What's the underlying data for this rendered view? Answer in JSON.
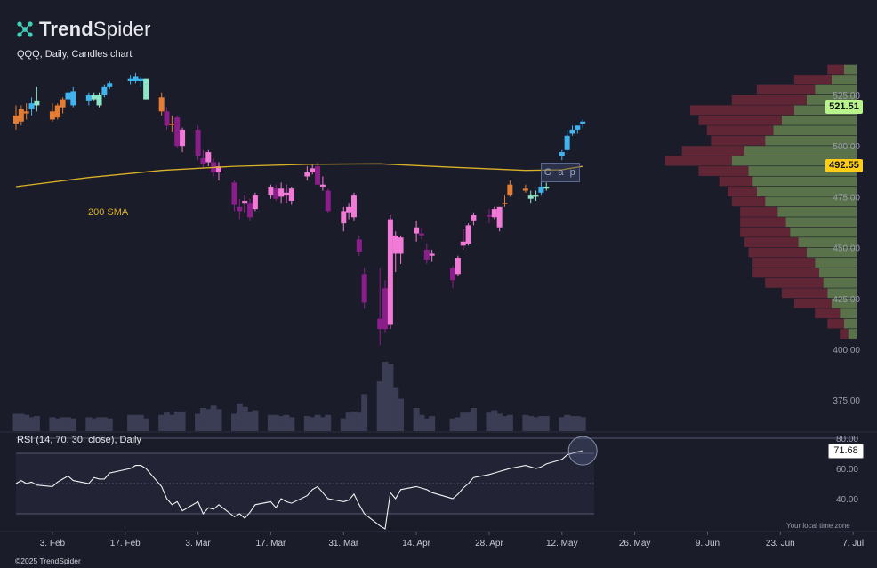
{
  "brand": {
    "logo_bold": "Trend",
    "logo_light": "Spider",
    "icon": "spider-web-icon"
  },
  "chart_title": "QQQ, Daily, Candles chart",
  "copyright": "©2025 TrendSpider",
  "local_time_note": "Your local time zone",
  "colors": {
    "background": "#1b1c29",
    "sma": "#d9b126",
    "bull_strong": "#40b4ef",
    "bull": "#f07ad6",
    "bear": "#8a1f8a",
    "bear_orange": "#e57c33",
    "mint": "#8fe6c6",
    "vp_up": "#6f8f55",
    "vp_down": "#7a2a3a",
    "volume": "#3b3d55",
    "rsi_line": "#f2f2f2"
  },
  "chart_data": {
    "type": "candlestick",
    "symbol": "QQQ",
    "interval": "Daily",
    "y_axis": {
      "ticks": [
        400,
        425,
        450,
        475,
        500,
        525
      ],
      "tick_labels": [
        "400.00",
        "425.00",
        "450.00",
        "475.00",
        "500.00",
        "525.00"
      ],
      "extra_ticks": [
        375
      ],
      "extra_tick_labels": [
        "375.00"
      ],
      "range": [
        360,
        545
      ]
    },
    "x_axis": {
      "labels": [
        "3. Feb",
        "17. Feb",
        "3. Mar",
        "17. Mar",
        "31. Mar",
        "14. Apr",
        "28. Apr",
        "12. May",
        "26. May",
        "9. Jun",
        "23. Jun",
        "7. Jul"
      ],
      "start_date": "2025-01-27",
      "end_date": "2025-07-08"
    },
    "candles": [
      {
        "d": "2025-01-27",
        "o": 515,
        "h": 520,
        "l": 508,
        "c": 511,
        "k": "bear_orange"
      },
      {
        "d": "2025-01-28",
        "o": 512,
        "h": 520,
        "l": 510,
        "c": 518,
        "k": "bear_orange"
      },
      {
        "d": "2025-01-29",
        "o": 517,
        "h": 521,
        "l": 513,
        "c": 516,
        "k": "bear_orange"
      },
      {
        "d": "2025-01-30",
        "o": 518,
        "h": 524,
        "l": 515,
        "c": 521,
        "k": "bull_strong"
      },
      {
        "d": "2025-01-31",
        "o": 522,
        "h": 529,
        "l": 517,
        "c": 520,
        "k": "mint"
      },
      {
        "d": "2025-02-03",
        "o": 517,
        "h": 521,
        "l": 512,
        "c": 513,
        "k": "bear_orange"
      },
      {
        "d": "2025-02-04",
        "o": 514,
        "h": 521,
        "l": 513,
        "c": 520,
        "k": "bear_orange"
      },
      {
        "d": "2025-02-05",
        "o": 519,
        "h": 524,
        "l": 516,
        "c": 523,
        "k": "bear_orange"
      },
      {
        "d": "2025-02-06",
        "o": 523,
        "h": 527,
        "l": 520,
        "c": 526,
        "k": "bull_strong"
      },
      {
        "d": "2025-02-07",
        "o": 527,
        "h": 529,
        "l": 519,
        "c": 520,
        "k": "bull_strong"
      },
      {
        "d": "2025-02-10",
        "o": 522,
        "h": 526,
        "l": 520,
        "c": 525,
        "k": "bull_strong"
      },
      {
        "d": "2025-02-11",
        "o": 523,
        "h": 526,
        "l": 522,
        "c": 525,
        "k": "mint"
      },
      {
        "d": "2025-02-12",
        "o": 520,
        "h": 526,
        "l": 519,
        "c": 525,
        "k": "mint"
      },
      {
        "d": "2025-02-13",
        "o": 525,
        "h": 530,
        "l": 524,
        "c": 529,
        "k": "bull_strong"
      },
      {
        "d": "2025-02-14",
        "o": 529,
        "h": 532,
        "l": 528,
        "c": 531,
        "k": "bull_strong"
      },
      {
        "d": "2025-02-18",
        "o": 532,
        "h": 535,
        "l": 530,
        "c": 533,
        "k": "bull_strong"
      },
      {
        "d": "2025-02-19",
        "o": 532,
        "h": 536,
        "l": 531,
        "c": 534,
        "k": "bull_strong"
      },
      {
        "d": "2025-02-20",
        "o": 533,
        "h": 534,
        "l": 529,
        "c": 532,
        "k": "bull_strong"
      },
      {
        "d": "2025-02-21",
        "o": 533,
        "h": 533,
        "l": 523,
        "c": 523,
        "k": "mint"
      },
      {
        "d": "2025-02-24",
        "o": 524,
        "h": 526,
        "l": 515,
        "c": 517,
        "k": "bear_orange"
      },
      {
        "d": "2025-02-25",
        "o": 517,
        "h": 519,
        "l": 508,
        "c": 510,
        "k": "bear"
      },
      {
        "d": "2025-02-26",
        "o": 511,
        "h": 515,
        "l": 507,
        "c": 511,
        "k": "bear_orange"
      },
      {
        "d": "2025-02-27",
        "o": 514,
        "h": 515,
        "l": 499,
        "c": 500,
        "k": "bear"
      },
      {
        "d": "2025-02-28",
        "o": 500,
        "h": 509,
        "l": 497,
        "c": 508,
        "k": "bull"
      },
      {
        "d": "2025-03-03",
        "o": 508,
        "h": 510,
        "l": 493,
        "c": 495,
        "k": "bear"
      },
      {
        "d": "2025-03-04",
        "o": 494,
        "h": 498,
        "l": 489,
        "c": 491,
        "k": "bear"
      },
      {
        "d": "2025-03-05",
        "o": 492,
        "h": 498,
        "l": 490,
        "c": 497,
        "k": "bull"
      },
      {
        "d": "2025-03-06",
        "o": 492,
        "h": 494,
        "l": 485,
        "c": 487,
        "k": "bear"
      },
      {
        "d": "2025-03-07",
        "o": 487,
        "h": 492,
        "l": 483,
        "c": 490,
        "k": "bull"
      },
      {
        "d": "2025-03-10",
        "o": 482,
        "h": 483,
        "l": 468,
        "c": 471,
        "k": "bear"
      },
      {
        "d": "2025-03-11",
        "o": 470,
        "h": 474,
        "l": 464,
        "c": 468,
        "k": "bear"
      },
      {
        "d": "2025-03-12",
        "o": 473,
        "h": 476,
        "l": 467,
        "c": 472,
        "k": "bull"
      },
      {
        "d": "2025-03-13",
        "o": 472,
        "h": 474,
        "l": 463,
        "c": 465,
        "k": "bear"
      },
      {
        "d": "2025-03-14",
        "o": 469,
        "h": 477,
        "l": 468,
        "c": 476,
        "k": "bull"
      },
      {
        "d": "2025-03-17",
        "o": 476,
        "h": 481,
        "l": 474,
        "c": 480,
        "k": "bull"
      },
      {
        "d": "2025-03-18",
        "o": 479,
        "h": 481,
        "l": 473,
        "c": 474,
        "k": "bear"
      },
      {
        "d": "2025-03-19",
        "o": 475,
        "h": 482,
        "l": 472,
        "c": 479,
        "k": "bull"
      },
      {
        "d": "2025-03-20",
        "o": 476,
        "h": 481,
        "l": 472,
        "c": 477,
        "k": "bull"
      },
      {
        "d": "2025-03-21",
        "o": 473,
        "h": 480,
        "l": 471,
        "c": 479,
        "k": "bull"
      },
      {
        "d": "2025-03-24",
        "o": 485,
        "h": 490,
        "l": 483,
        "c": 487,
        "k": "bull"
      },
      {
        "d": "2025-03-25",
        "o": 487,
        "h": 491,
        "l": 486,
        "c": 489,
        "k": "bull"
      },
      {
        "d": "2025-03-26",
        "o": 490,
        "h": 492,
        "l": 481,
        "c": 481,
        "k": "bear"
      },
      {
        "d": "2025-03-27",
        "o": 481,
        "h": 485,
        "l": 478,
        "c": 480,
        "k": "bull"
      },
      {
        "d": "2025-03-28",
        "o": 478,
        "h": 479,
        "l": 467,
        "c": 468,
        "k": "bear"
      },
      {
        "d": "2025-03-31",
        "o": 462,
        "h": 470,
        "l": 458,
        "c": 468,
        "k": "bull"
      },
      {
        "d": "2025-04-01",
        "o": 467,
        "h": 472,
        "l": 464,
        "c": 470,
        "k": "bull"
      },
      {
        "d": "2025-04-02",
        "o": 465,
        "h": 477,
        "l": 463,
        "c": 476,
        "k": "bull"
      },
      {
        "d": "2025-04-03",
        "o": 454,
        "h": 456,
        "l": 446,
        "c": 448,
        "k": "bear"
      },
      {
        "d": "2025-04-04",
        "o": 437,
        "h": 440,
        "l": 420,
        "c": 423,
        "k": "bear"
      },
      {
        "d": "2025-04-07",
        "o": 410,
        "h": 440,
        "l": 402,
        "c": 415,
        "k": "bear"
      },
      {
        "d": "2025-04-08",
        "o": 430,
        "h": 434,
        "l": 408,
        "c": 410,
        "k": "bear"
      },
      {
        "d": "2025-04-09",
        "o": 412,
        "h": 466,
        "l": 410,
        "c": 464,
        "k": "bull"
      },
      {
        "d": "2025-04-10",
        "o": 456,
        "h": 458,
        "l": 438,
        "c": 447,
        "k": "bull"
      },
      {
        "d": "2025-04-11",
        "o": 447,
        "h": 456,
        "l": 442,
        "c": 455,
        "k": "bull"
      },
      {
        "d": "2025-04-14",
        "o": 460,
        "h": 463,
        "l": 453,
        "c": 457,
        "k": "bull"
      },
      {
        "d": "2025-04-15",
        "o": 457,
        "h": 460,
        "l": 454,
        "c": 456,
        "k": "bear"
      },
      {
        "d": "2025-04-16",
        "o": 449,
        "h": 452,
        "l": 442,
        "c": 444,
        "k": "bear"
      },
      {
        "d": "2025-04-17",
        "o": 446,
        "h": 449,
        "l": 443,
        "c": 447,
        "k": "bull"
      },
      {
        "d": "2025-04-21",
        "o": 440,
        "h": 441,
        "l": 430,
        "c": 434,
        "k": "bear"
      },
      {
        "d": "2025-04-22",
        "o": 437,
        "h": 446,
        "l": 436,
        "c": 445,
        "k": "bull"
      },
      {
        "d": "2025-04-23",
        "o": 453,
        "h": 459,
        "l": 449,
        "c": 451,
        "k": "bull"
      },
      {
        "d": "2025-04-24",
        "o": 452,
        "h": 462,
        "l": 451,
        "c": 461,
        "k": "bull"
      },
      {
        "d": "2025-04-25",
        "o": 463,
        "h": 467,
        "l": 461,
        "c": 466,
        "k": "bull"
      },
      {
        "d": "2025-04-28",
        "o": 466,
        "h": 469,
        "l": 462,
        "c": 466,
        "k": "bear"
      },
      {
        "d": "2025-04-29",
        "o": 465,
        "h": 470,
        "l": 464,
        "c": 469,
        "k": "bull"
      },
      {
        "d": "2025-04-30",
        "o": 460,
        "h": 470,
        "l": 458,
        "c": 470,
        "k": "bull"
      },
      {
        "d": "2025-05-01",
        "o": 472,
        "h": 476,
        "l": 470,
        "c": 472,
        "k": "bear_orange"
      },
      {
        "d": "2025-05-02",
        "o": 476,
        "h": 483,
        "l": 475,
        "c": 481,
        "k": "bear_orange"
      },
      {
        "d": "2025-05-05",
        "o": 479,
        "h": 481,
        "l": 477,
        "c": 478,
        "k": "bear_orange"
      },
      {
        "d": "2025-05-06",
        "o": 476,
        "h": 478,
        "l": 472,
        "c": 474,
        "k": "mint"
      },
      {
        "d": "2025-05-07",
        "o": 475,
        "h": 478,
        "l": 473,
        "c": 476,
        "k": "mint"
      },
      {
        "d": "2025-05-08",
        "o": 477,
        "h": 483,
        "l": 476,
        "c": 480,
        "k": "bull_strong"
      },
      {
        "d": "2025-05-09",
        "o": 480,
        "h": 482,
        "l": 478,
        "c": 479,
        "k": "mint"
      },
      {
        "d": "2025-05-12",
        "o": 495,
        "h": 498,
        "l": 493,
        "c": 497,
        "k": "bull_strong"
      },
      {
        "d": "2025-05-13",
        "o": 498,
        "h": 508,
        "l": 497,
        "c": 505,
        "k": "bull_strong"
      },
      {
        "d": "2025-05-14",
        "o": 506,
        "h": 510,
        "l": 505,
        "c": 508,
        "k": "bull_strong"
      },
      {
        "d": "2025-05-15",
        "o": 508,
        "h": 510,
        "l": 506,
        "c": 510,
        "k": "bull_strong"
      },
      {
        "d": "2025-05-16",
        "o": 511,
        "h": 513,
        "l": 509,
        "c": 512,
        "k": "bull_strong"
      }
    ],
    "sma": {
      "name": "200 SMA",
      "last_value": 492.55,
      "last_value_label": "492.55",
      "points": [
        [
          "2025-01-27",
          480
        ],
        [
          "2025-02-10",
          484.5
        ],
        [
          "2025-02-24",
          488
        ],
        [
          "2025-03-10",
          490
        ],
        [
          "2025-03-24",
          491
        ],
        [
          "2025-04-07",
          491.2
        ],
        [
          "2025-04-21",
          489.5
        ],
        [
          "2025-05-05",
          488
        ],
        [
          "2025-05-12",
          488.3
        ],
        [
          "2025-05-16",
          490
        ]
      ]
    },
    "last_price": {
      "value": 521.51,
      "label": "521.51"
    },
    "gap": {
      "label": "G a p",
      "from": 483,
      "to": 492,
      "start": "2025-05-09",
      "end": "2025-05-16"
    },
    "volume": [
      15,
      15,
      14,
      12,
      13,
      12,
      11,
      12,
      12,
      11,
      12,
      11,
      12,
      12,
      11,
      14,
      14,
      14,
      11,
      14,
      16,
      14,
      17,
      17,
      15,
      20,
      19,
      22,
      19,
      15,
      24,
      21,
      17,
      18,
      14,
      14,
      13,
      14,
      12,
      13,
      12,
      14,
      12,
      14,
      11,
      16,
      17,
      16,
      32,
      43,
      60,
      58,
      38,
      28,
      20,
      14,
      11,
      13,
      11,
      12,
      16,
      16,
      20,
      16,
      18,
      15,
      13,
      14,
      14,
      13,
      12,
      13,
      13,
      12,
      14,
      13,
      13,
      12
    ],
    "volume_max": 60,
    "volume_profile": {
      "price_levels": [
        405,
        410,
        415,
        420,
        425,
        430,
        435,
        440,
        445,
        450,
        455,
        460,
        465,
        470,
        475,
        480,
        485,
        490,
        495,
        500,
        505,
        510,
        515,
        520,
        525,
        530,
        535
      ],
      "up_volume": [
        2,
        3,
        4,
        6,
        7,
        8,
        9,
        10,
        12,
        14,
        16,
        17,
        19,
        22,
        24,
        25,
        26,
        30,
        27,
        22,
        20,
        18,
        15,
        12,
        10,
        6,
        3
      ],
      "down_volume": [
        2,
        4,
        6,
        9,
        11,
        14,
        16,
        15,
        14,
        13,
        12,
        11,
        9,
        8,
        7,
        8,
        12,
        16,
        15,
        13,
        16,
        20,
        25,
        18,
        14,
        9,
        4
      ]
    },
    "rsi": {
      "title": "RSI (14, 70, 30, close), Daily",
      "settings": [
        14,
        70,
        30
      ],
      "levels": [
        80,
        70,
        50,
        30
      ],
      "y_ticks": [
        40,
        60,
        80
      ],
      "y_tick_labels": [
        "40.00",
        "60.00",
        "80.00"
      ],
      "range": [
        18,
        82
      ],
      "last_value": 71.68,
      "last_value_label": "71.68",
      "values": [
        50,
        52,
        50,
        51,
        49,
        48,
        51,
        53,
        55,
        52,
        50,
        54,
        53,
        53,
        57,
        60,
        62,
        62,
        60,
        48,
        40,
        36,
        38,
        32,
        38,
        30,
        34,
        33,
        36,
        28,
        30,
        27,
        31,
        36,
        38,
        34,
        40,
        38,
        37,
        42,
        46,
        48,
        44,
        40,
        38,
        39,
        43,
        36,
        30,
        22,
        20,
        44,
        40,
        46,
        48,
        47,
        46,
        44,
        40,
        43,
        47,
        50,
        54,
        56,
        57,
        58,
        59,
        60,
        62,
        61,
        60,
        61,
        63,
        66,
        69,
        70,
        71,
        71.68
      ]
    }
  }
}
